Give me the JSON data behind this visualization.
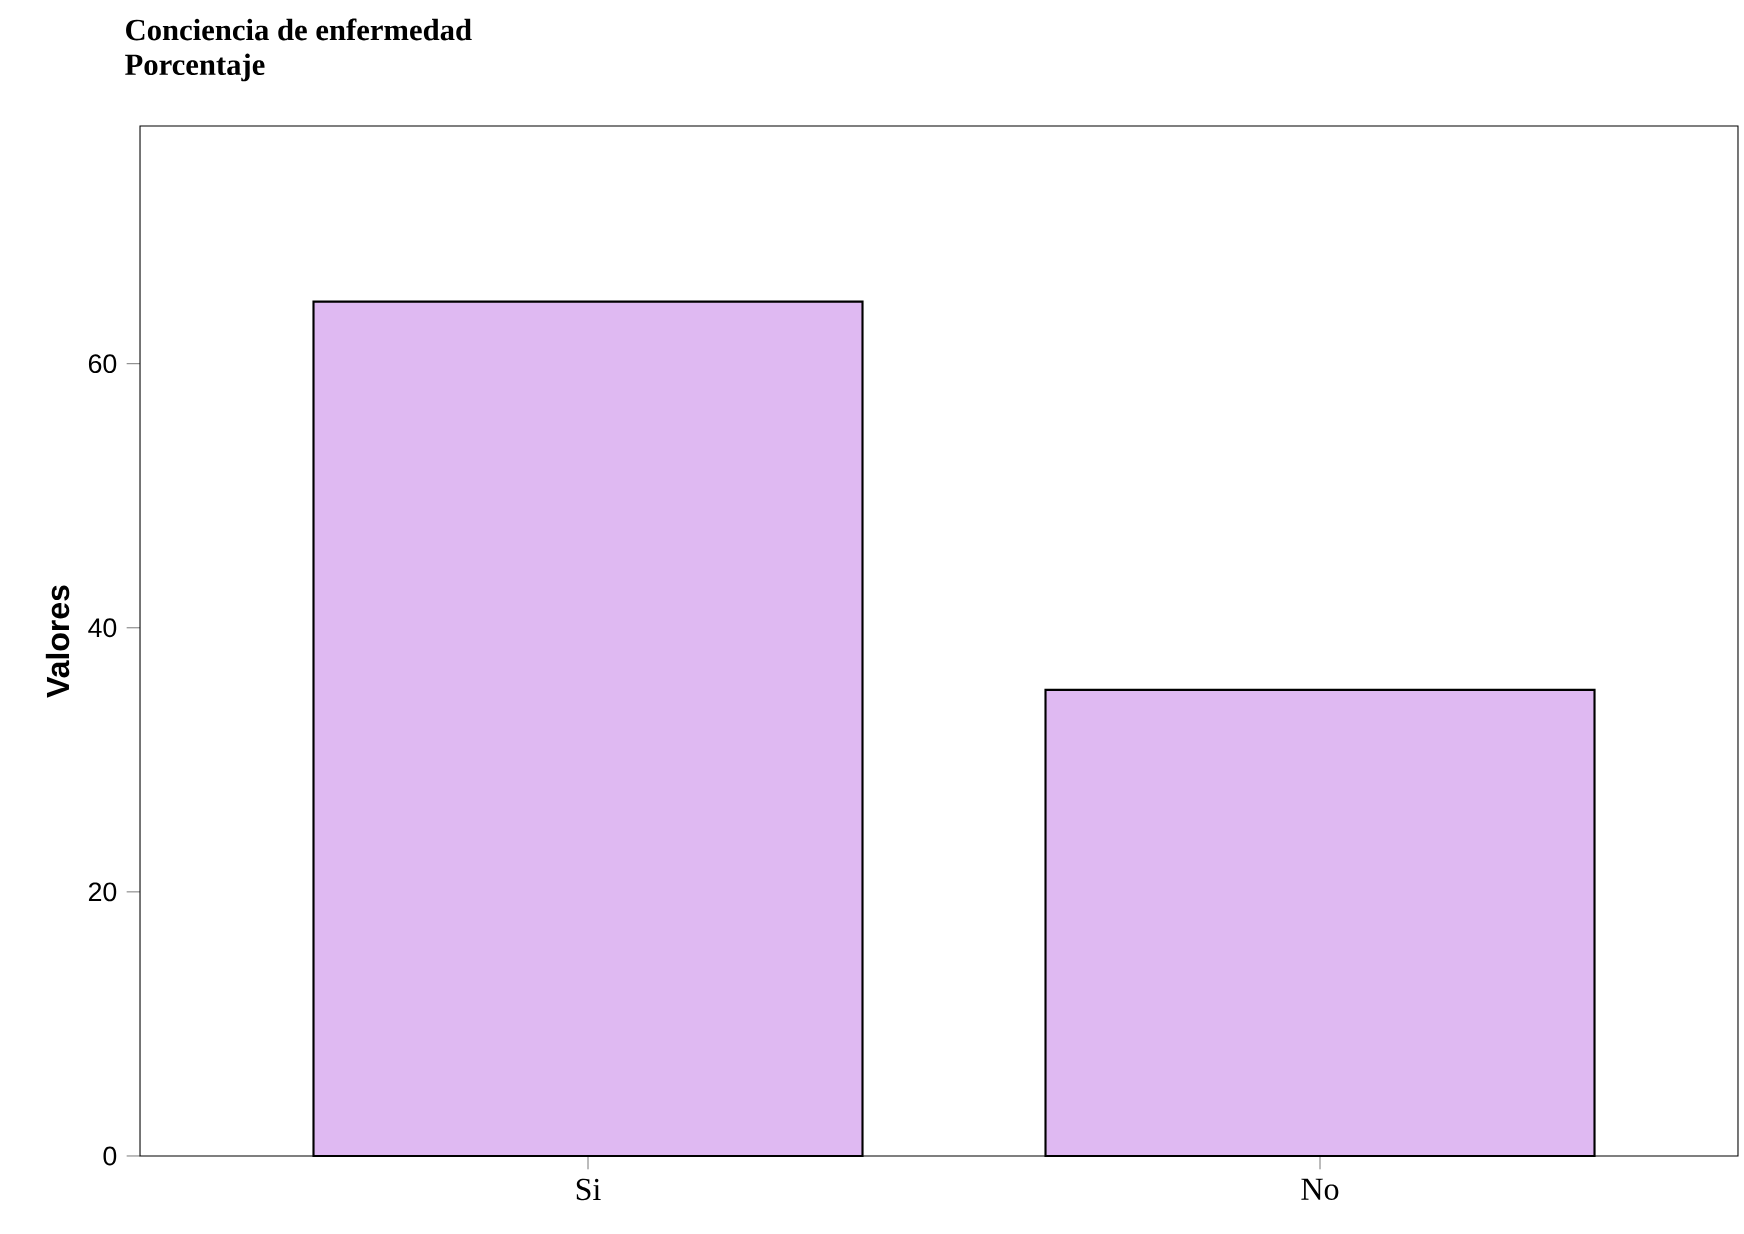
{
  "chart_data": {
    "type": "bar",
    "title": "Conciencia de enfermedad",
    "subtitle": "Porcentaje",
    "ylabel": "Valores",
    "categories": [
      "Si",
      "No"
    ],
    "values": [
      64.7,
      35.3
    ],
    "color": "#dfb9f2",
    "ylim": [
      0,
      78
    ],
    "yticks": [
      0,
      20,
      40,
      60
    ],
    "grid": false
  }
}
